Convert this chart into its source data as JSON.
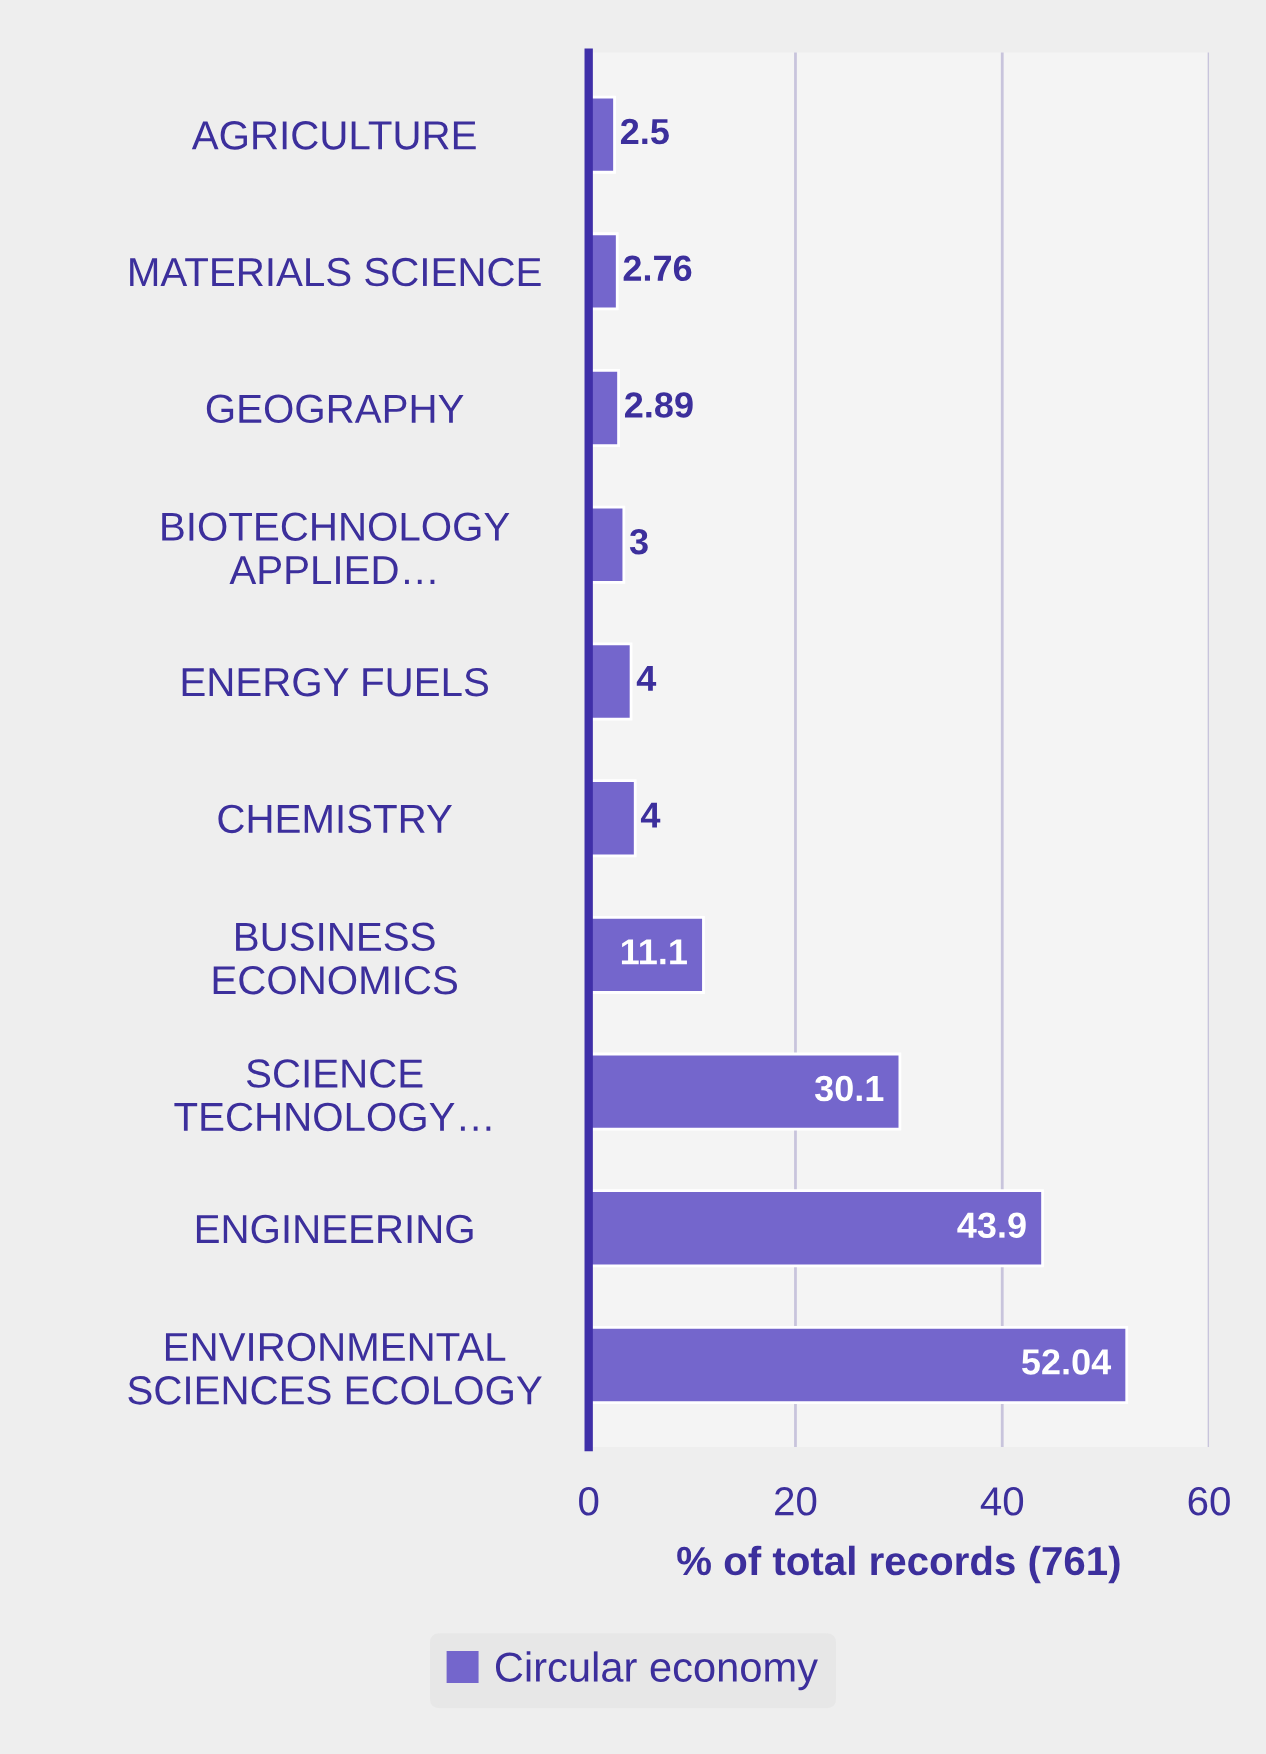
{
  "chart_data": {
    "type": "bar",
    "orientation": "horizontal",
    "xlabel": "% of total records (761)",
    "categories": [
      "AGRICULTURE",
      "MATERIALS SCIENCE",
      "GEOGRAPHY",
      "BIOTECHNOLOGY\nAPPLIED…",
      "ENERGY FUELS",
      "CHEMISTRY",
      "BUSINESS\nECONOMICS",
      "SCIENCE\nTECHNOLOGY…",
      "ENGINEERING",
      "ENVIRONMENTAL\nSCIENCES ECOLOGY"
    ],
    "series": [
      {
        "name": "Circular economy",
        "color": "#7466cc",
        "values": [
          2.5,
          2.76,
          2.89,
          3.4,
          4.1,
          4.5,
          11.1,
          30.1,
          43.9,
          52.04
        ],
        "value_labels": [
          "2.5",
          "2.76",
          "2.89",
          "3",
          "4",
          "4",
          "11.1",
          "30.1",
          "43.9",
          "52.04"
        ]
      }
    ],
    "xlim": [
      0,
      60
    ],
    "xticks": [
      0,
      20,
      40,
      60
    ],
    "grid": "x",
    "legend": "bottom"
  }
}
